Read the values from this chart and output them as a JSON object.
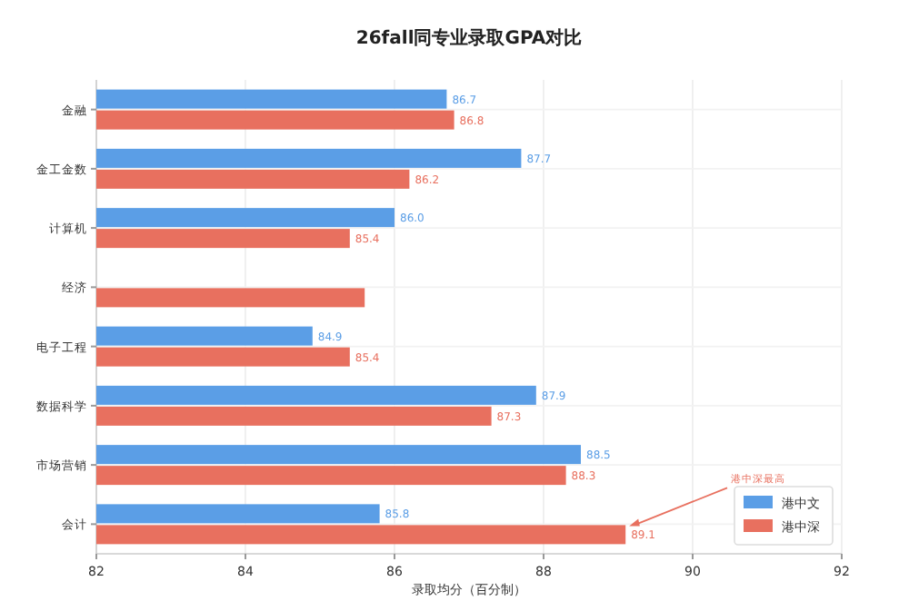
{
  "chart_data": {
    "type": "bar",
    "orientation": "horizontal",
    "title": "26fall同专业录取GPA对比",
    "xlabel": "录取均分（百分制）",
    "categories": [
      "金融",
      "金工金数",
      "计算机",
      "经济",
      "电子工程",
      "数据科学",
      "市场营销",
      "会计"
    ],
    "series": [
      {
        "name": "港中文",
        "color": "#5b9ee6",
        "values": [
          86.7,
          87.7,
          86.0,
          null,
          84.9,
          87.9,
          88.5,
          85.8
        ],
        "value_labels": [
          "86.7",
          "87.7",
          "86.0",
          null,
          "84.9",
          "87.9",
          "88.5",
          "85.8"
        ]
      },
      {
        "name": "港中深",
        "color": "#e8705f",
        "values": [
          86.8,
          86.2,
          85.4,
          85.6,
          85.4,
          87.3,
          88.3,
          89.1
        ],
        "value_labels": [
          "86.8",
          "86.2",
          "85.4",
          null,
          "85.4",
          "87.3",
          "88.3",
          "89.1"
        ]
      }
    ],
    "xlim": [
      82,
      92
    ],
    "xticks": [
      82,
      84,
      86,
      88,
      90,
      92
    ],
    "grid": true,
    "legend": "bottom right",
    "annotations": [
      {
        "text": "港中深最高",
        "x": 89.1,
        "y": "会计"
      }
    ]
  }
}
